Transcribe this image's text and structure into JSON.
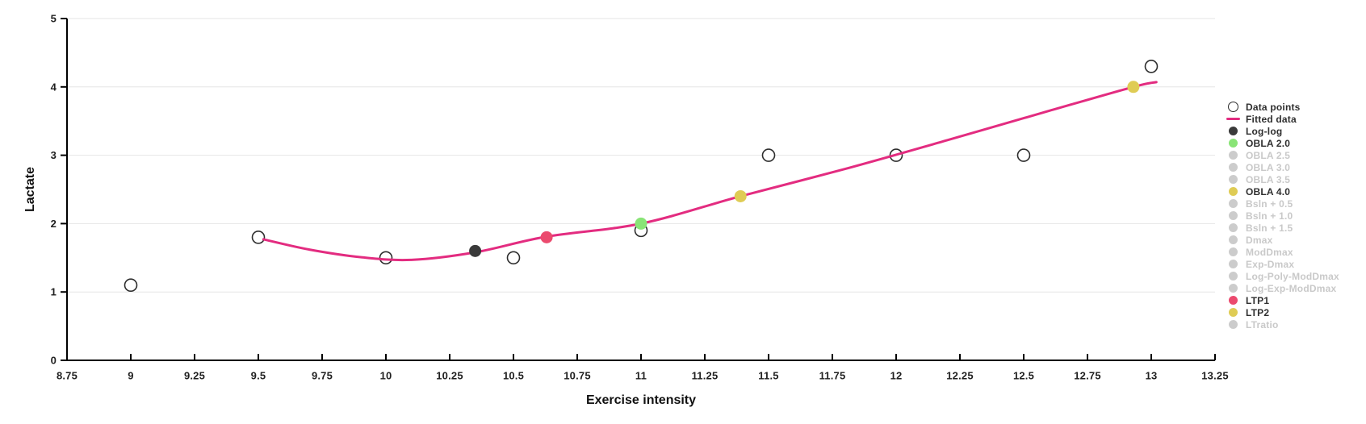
{
  "colors": {
    "background": "#ffffff",
    "grid": "#e6e6e6",
    "axis": "#000000",
    "tick_text": "#1f1f1f",
    "title_text": "#111111",
    "fitted_line": "#e32c80",
    "data_point_stroke": "#2d2d2d",
    "log_log": "#3a3a3a",
    "obla_2_0": "#89e476",
    "obla_4_0": "#dfcc55",
    "ltp1": "#eb4a6e",
    "ltp2": "#dfcc55",
    "legend_inactive": "#cccccc",
    "legend_active_text": "#2f2f2f",
    "legend_inactive_text": "#c9c9c9",
    "menu_icon": "#5f5f5f"
  },
  "toolbar": {
    "context_menu_icon": "hamburger-icon"
  },
  "chart_data": {
    "type": "scatter",
    "title": "",
    "xlabel": "Exercise intensity",
    "ylabel": "Lactate",
    "xlim": [
      8.75,
      13.25
    ],
    "ylim": [
      0,
      5
    ],
    "grid": "horizontal",
    "x_ticks": [
      "8.75",
      "9",
      "9.25",
      "9.5",
      "9.75",
      "10",
      "10.25",
      "10.5",
      "10.75",
      "11",
      "11.25",
      "11.5",
      "11.75",
      "12",
      "12.25",
      "12.5",
      "12.75",
      "13",
      "13.25"
    ],
    "y_ticks": [
      "0",
      "1",
      "2",
      "3",
      "4",
      "5"
    ],
    "series": [
      {
        "name": "Data points",
        "type": "scatter",
        "marker": "open-circle",
        "color": "#2d2d2d",
        "points": [
          [
            9,
            1.1
          ],
          [
            9.5,
            1.8
          ],
          [
            10,
            1.5
          ],
          [
            10.5,
            1.5
          ],
          [
            11,
            1.9
          ],
          [
            11.5,
            3.0
          ],
          [
            12,
            3.0
          ],
          [
            12.5,
            3.0
          ],
          [
            13,
            4.3
          ]
        ]
      },
      {
        "name": "Fitted data",
        "type": "line",
        "color": "#e32c80",
        "points": [
          [
            9.52,
            1.77
          ],
          [
            9.7,
            1.62
          ],
          [
            9.9,
            1.51
          ],
          [
            10.1,
            1.47
          ],
          [
            10.35,
            1.58
          ],
          [
            10.63,
            1.81
          ],
          [
            11,
            2.0
          ],
          [
            11.39,
            2.4
          ],
          [
            11.8,
            2.8
          ],
          [
            12.2,
            3.22
          ],
          [
            12.6,
            3.65
          ],
          [
            12.93,
            4.0
          ],
          [
            13.02,
            4.07
          ]
        ]
      },
      {
        "name": "Log-log",
        "type": "scatter",
        "marker": "circle",
        "color": "#3a3a3a",
        "points": [
          [
            10.35,
            1.6
          ]
        ]
      },
      {
        "name": "OBLA 2.0",
        "type": "scatter",
        "marker": "circle",
        "color": "#89e476",
        "points": [
          [
            11,
            2.0
          ]
        ]
      },
      {
        "name": "OBLA 4.0",
        "type": "scatter",
        "marker": "circle",
        "color": "#dfcc55",
        "points": [
          [
            12.93,
            4.0
          ]
        ]
      },
      {
        "name": "LTP1",
        "type": "scatter",
        "marker": "circle",
        "color": "#eb4a6e",
        "points": [
          [
            10.63,
            1.8
          ]
        ]
      },
      {
        "name": "LTP2",
        "type": "scatter",
        "marker": "circle",
        "color": "#dfcc55",
        "points": [
          [
            11.39,
            2.4
          ]
        ]
      }
    ],
    "legend": {
      "position": "right",
      "items": [
        {
          "label": "Data points",
          "symbol": "open-circle",
          "color": "#2d2d2d",
          "active": true
        },
        {
          "label": "Fitted data",
          "symbol": "line",
          "color": "#e32c80",
          "active": true
        },
        {
          "label": "Log-log",
          "symbol": "circle",
          "color": "#3a3a3a",
          "active": true
        },
        {
          "label": "OBLA 2.0",
          "symbol": "circle",
          "color": "#89e476",
          "active": true
        },
        {
          "label": "OBLA 2.5",
          "symbol": "circle",
          "color": "#cccccc",
          "active": false
        },
        {
          "label": "OBLA 3.0",
          "symbol": "circle",
          "color": "#cccccc",
          "active": false
        },
        {
          "label": "OBLA 3.5",
          "symbol": "circle",
          "color": "#cccccc",
          "active": false
        },
        {
          "label": "OBLA 4.0",
          "symbol": "circle",
          "color": "#dfcc55",
          "active": true
        },
        {
          "label": "Bsln + 0.5",
          "symbol": "circle",
          "color": "#cccccc",
          "active": false
        },
        {
          "label": "Bsln + 1.0",
          "symbol": "circle",
          "color": "#cccccc",
          "active": false
        },
        {
          "label": "Bsln + 1.5",
          "symbol": "circle",
          "color": "#cccccc",
          "active": false
        },
        {
          "label": "Dmax",
          "symbol": "circle",
          "color": "#cccccc",
          "active": false
        },
        {
          "label": "ModDmax",
          "symbol": "circle",
          "color": "#cccccc",
          "active": false
        },
        {
          "label": "Exp-Dmax",
          "symbol": "circle",
          "color": "#cccccc",
          "active": false
        },
        {
          "label": "Log-Poly-ModDmax",
          "symbol": "circle",
          "color": "#cccccc",
          "active": false
        },
        {
          "label": "Log-Exp-ModDmax",
          "symbol": "circle",
          "color": "#cccccc",
          "active": false
        },
        {
          "label": "LTP1",
          "symbol": "circle",
          "color": "#eb4a6e",
          "active": true
        },
        {
          "label": "LTP2",
          "symbol": "circle",
          "color": "#dfcc55",
          "active": true
        },
        {
          "label": "LTratio",
          "symbol": "circle",
          "color": "#cccccc",
          "active": false
        }
      ]
    }
  }
}
